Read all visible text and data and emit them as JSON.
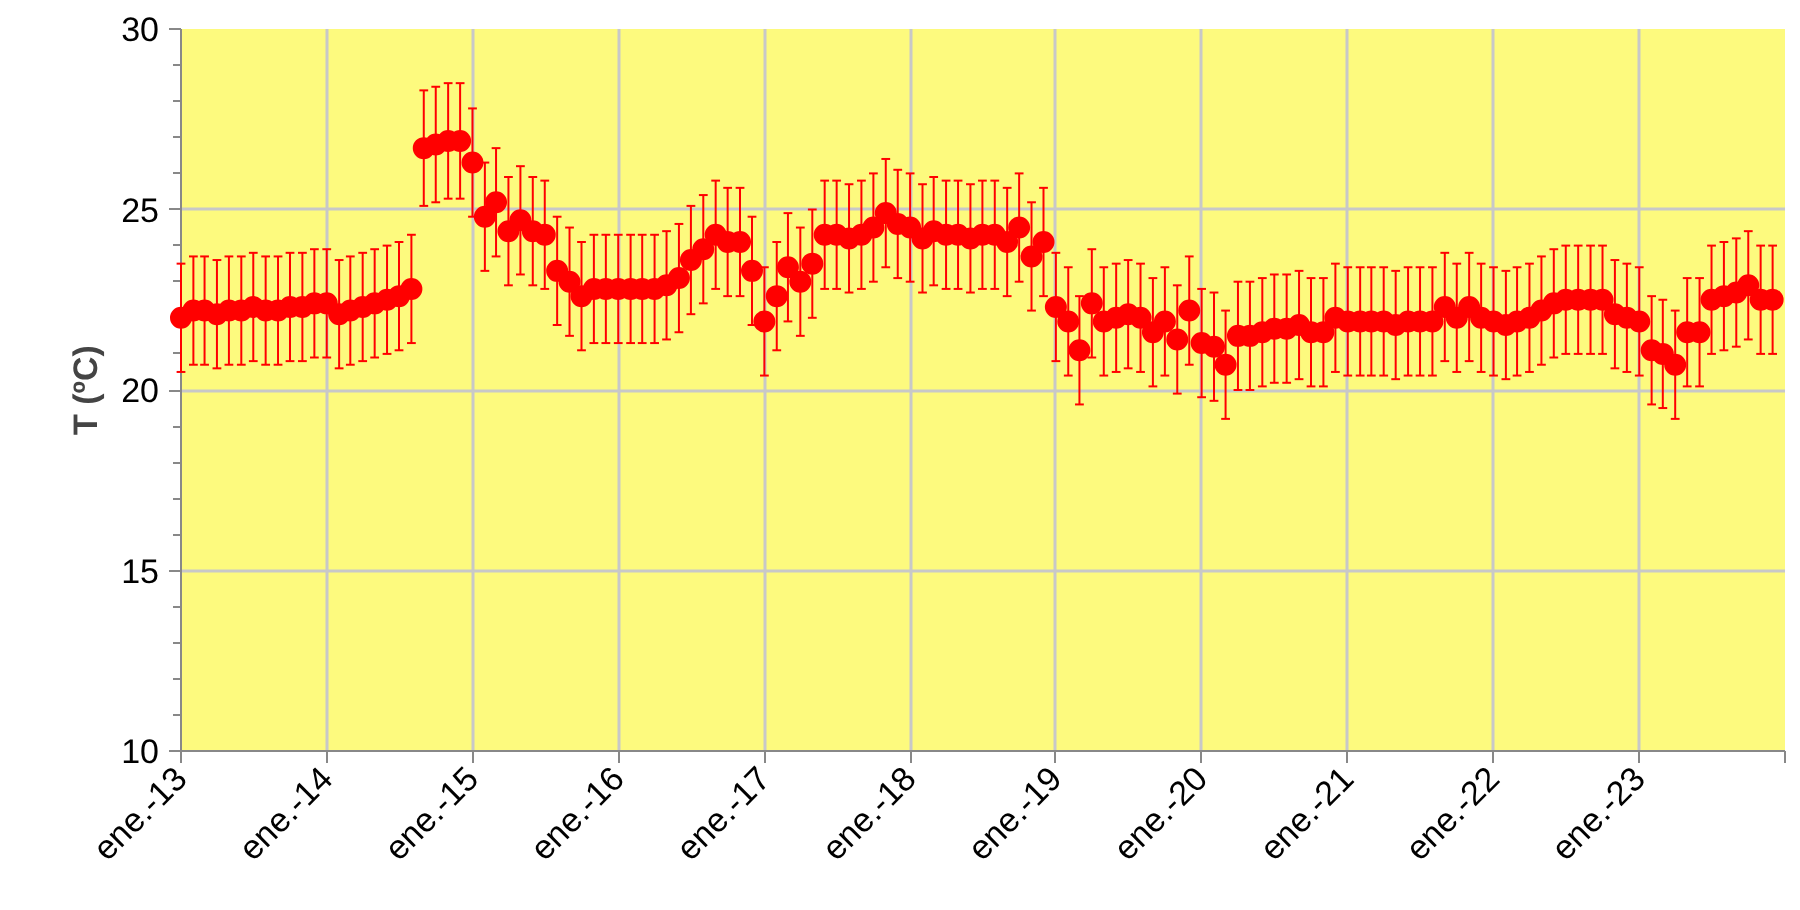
{
  "chart_data": {
    "type": "scatter",
    "ylabel": "T (ºC)",
    "x": [
      "2013-01",
      "2013-02",
      "2013-03",
      "2013-04",
      "2013-05",
      "2013-06",
      "2013-07",
      "2013-08",
      "2013-09",
      "2013-10",
      "2013-11",
      "2013-12",
      "2014-01",
      "2014-02",
      "2014-03",
      "2014-04",
      "2014-05",
      "2014-06",
      "2014-07",
      "2014-08",
      "2014-09",
      "2014-10",
      "2014-11",
      "2014-12",
      "2015-01",
      "2015-02",
      "2015-03",
      "2015-04",
      "2015-05",
      "2015-06",
      "2015-07",
      "2015-08",
      "2015-09",
      "2015-10",
      "2015-11",
      "2015-12",
      "2016-01",
      "2016-02",
      "2016-03",
      "2016-04",
      "2016-05",
      "2016-06",
      "2016-07",
      "2016-08",
      "2016-09",
      "2016-10",
      "2016-11",
      "2016-12",
      "2017-01",
      "2017-02",
      "2017-03",
      "2017-04",
      "2017-05",
      "2017-06",
      "2017-07",
      "2017-08",
      "2017-09",
      "2017-10",
      "2017-11",
      "2017-12",
      "2018-01",
      "2018-02",
      "2018-03",
      "2018-04",
      "2018-05",
      "2018-06",
      "2018-07",
      "2018-08",
      "2018-09",
      "2018-10",
      "2018-11",
      "2018-12",
      "2019-01",
      "2019-02",
      "2019-03",
      "2019-04",
      "2019-05",
      "2019-06",
      "2019-07",
      "2019-08",
      "2019-09",
      "2019-10",
      "2019-11",
      "2019-12",
      "2020-01",
      "2020-02",
      "2020-03",
      "2020-04",
      "2020-05",
      "2020-06",
      "2020-07",
      "2020-08",
      "2020-09",
      "2020-10",
      "2020-11",
      "2020-12",
      "2021-01",
      "2021-02",
      "2021-03",
      "2021-04",
      "2021-05",
      "2021-06",
      "2021-07",
      "2021-08",
      "2021-09",
      "2021-10",
      "2021-11",
      "2021-12",
      "2022-01",
      "2022-02",
      "2022-03",
      "2022-04",
      "2022-05",
      "2022-06",
      "2022-07",
      "2022-08",
      "2022-09",
      "2022-10",
      "2022-11",
      "2022-12",
      "2023-01",
      "2023-02",
      "2023-03",
      "2023-04",
      "2023-05",
      "2023-06",
      "2023-07",
      "2023-08",
      "2023-09",
      "2023-10",
      "2023-11",
      "2023-12"
    ],
    "series": [
      {
        "color": "#ff0000",
        "values": [
          22.0,
          22.2,
          22.2,
          22.1,
          22.2,
          22.2,
          22.3,
          22.2,
          22.2,
          22.3,
          22.3,
          22.4,
          22.4,
          22.1,
          22.2,
          22.3,
          22.4,
          22.5,
          22.6,
          22.8,
          26.7,
          26.8,
          26.9,
          26.9,
          26.3,
          24.8,
          25.2,
          24.4,
          24.7,
          24.4,
          24.3,
          23.3,
          23.0,
          22.6,
          22.8,
          22.8,
          22.8,
          22.8,
          22.8,
          22.8,
          22.9,
          23.1,
          23.6,
          23.9,
          24.3,
          24.1,
          24.1,
          23.3,
          21.9,
          22.6,
          23.4,
          23.0,
          23.5,
          24.3,
          24.3,
          24.2,
          24.3,
          24.5,
          24.9,
          24.6,
          24.5,
          24.2,
          24.4,
          24.3,
          24.3,
          24.2,
          24.3,
          24.3,
          24.1,
          24.5,
          23.7,
          24.1,
          22.3,
          21.9,
          21.1,
          22.4,
          21.9,
          22.0,
          22.1,
          22.0,
          21.6,
          21.9,
          21.4,
          22.2,
          21.3,
          21.2,
          20.7,
          21.5,
          21.5,
          21.6,
          21.7,
          21.7,
          21.8,
          21.6,
          21.6,
          22.0,
          21.9,
          21.9,
          21.9,
          21.9,
          21.8,
          21.9,
          21.9,
          21.9,
          22.3,
          22.0,
          22.3,
          22.0,
          21.9,
          21.8,
          21.9,
          22.0,
          22.2,
          22.4,
          22.5,
          22.5,
          22.5,
          22.5,
          22.1,
          22.0,
          21.9,
          21.1,
          21.0,
          20.7,
          21.6,
          21.6,
          22.5,
          22.6,
          22.7,
          22.9,
          22.5,
          22.5
        ],
        "errors": [
          1.5,
          1.5,
          1.5,
          1.5,
          1.5,
          1.5,
          1.5,
          1.5,
          1.5,
          1.5,
          1.5,
          1.5,
          1.5,
          1.5,
          1.5,
          1.5,
          1.5,
          1.5,
          1.5,
          1.5,
          1.6,
          1.6,
          1.6,
          1.6,
          1.5,
          1.5,
          1.5,
          1.5,
          1.5,
          1.5,
          1.5,
          1.5,
          1.5,
          1.5,
          1.5,
          1.5,
          1.5,
          1.5,
          1.5,
          1.5,
          1.5,
          1.5,
          1.5,
          1.5,
          1.5,
          1.5,
          1.5,
          1.5,
          1.5,
          1.5,
          1.5,
          1.5,
          1.5,
          1.5,
          1.5,
          1.5,
          1.5,
          1.5,
          1.5,
          1.5,
          1.5,
          1.5,
          1.5,
          1.5,
          1.5,
          1.5,
          1.5,
          1.5,
          1.5,
          1.5,
          1.5,
          1.5,
          1.5,
          1.5,
          1.5,
          1.5,
          1.5,
          1.5,
          1.5,
          1.5,
          1.5,
          1.5,
          1.5,
          1.5,
          1.5,
          1.5,
          1.5,
          1.5,
          1.5,
          1.5,
          1.5,
          1.5,
          1.5,
          1.5,
          1.5,
          1.5,
          1.5,
          1.5,
          1.5,
          1.5,
          1.5,
          1.5,
          1.5,
          1.5,
          1.5,
          1.5,
          1.5,
          1.5,
          1.5,
          1.5,
          1.5,
          1.5,
          1.5,
          1.5,
          1.5,
          1.5,
          1.5,
          1.5,
          1.5,
          1.5,
          1.5,
          1.5,
          1.5,
          1.5,
          1.5,
          1.5,
          1.5,
          1.5,
          1.5,
          1.5,
          1.5,
          1.5
        ]
      }
    ],
    "xlim": [
      "2013-01-01",
      "2024-01-01"
    ],
    "xticks": [
      {
        "value": "2013-01-01",
        "label": "ene.-13"
      },
      {
        "value": "2014-01-01",
        "label": "ene.-14"
      },
      {
        "value": "2015-01-01",
        "label": "ene.-15"
      },
      {
        "value": "2016-01-01",
        "label": "ene.-16"
      },
      {
        "value": "2017-01-01",
        "label": "ene.-17"
      },
      {
        "value": "2018-01-01",
        "label": "ene.-18"
      },
      {
        "value": "2019-01-01",
        "label": "ene.-19"
      },
      {
        "value": "2020-01-01",
        "label": "ene.-20"
      },
      {
        "value": "2021-01-01",
        "label": "ene.-21"
      },
      {
        "value": "2022-01-01",
        "label": "ene.-22"
      },
      {
        "value": "2023-01-01",
        "label": "ene.-23"
      },
      {
        "value": "2024-01-01",
        "label": null
      }
    ],
    "ylim": [
      10,
      30
    ],
    "yticks": [
      10,
      {
        "value": 11,
        "label": null
      },
      {
        "value": 12,
        "label": null
      },
      {
        "value": 13,
        "label": null
      },
      {
        "value": 14,
        "label": null
      },
      15,
      {
        "value": 16,
        "label": null
      },
      {
        "value": 17,
        "label": null
      },
      {
        "value": 18,
        "label": null
      },
      {
        "value": 19,
        "label": null
      },
      20,
      {
        "value": 21,
        "label": null
      },
      {
        "value": 22,
        "label": null
      },
      {
        "value": 23,
        "label": null
      },
      {
        "value": 24,
        "label": null
      },
      25,
      {
        "value": 26,
        "label": null
      },
      {
        "value": 27,
        "label": null
      },
      {
        "value": 28,
        "label": null
      },
      {
        "value": 29,
        "label": null
      },
      30
    ],
    "grid": true,
    "marker": "circle"
  }
}
